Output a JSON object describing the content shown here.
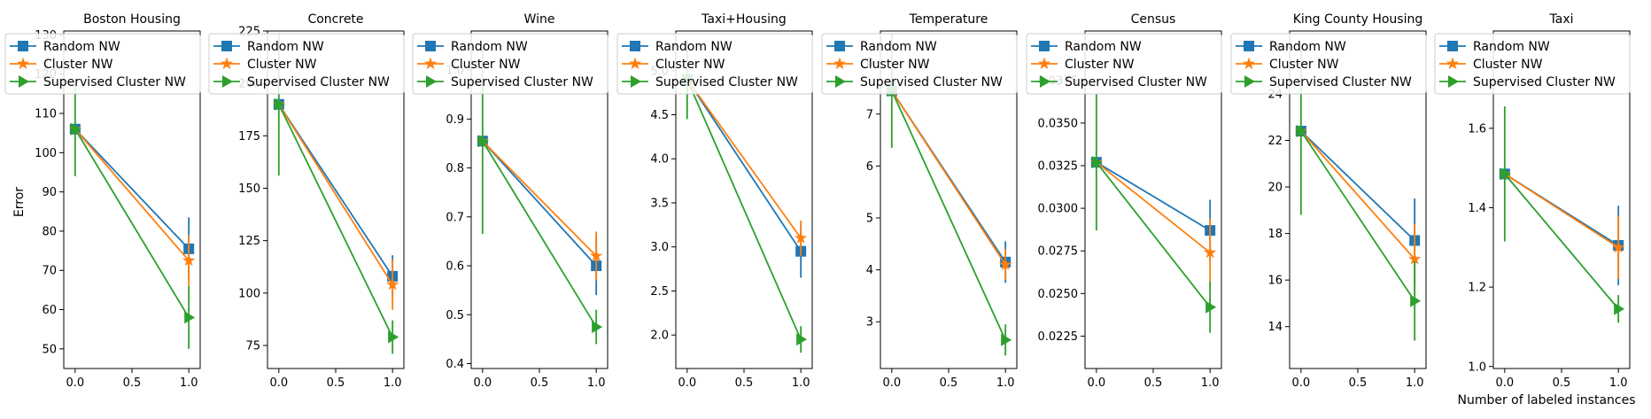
{
  "figure": {
    "ylabel": "Error",
    "xlabel": "Number of labeled instances",
    "legend_placement": "upper-left",
    "colors": {
      "Random NW": "#1f77b4",
      "Cluster NW": "#ff7f0e",
      "Supervised Cluster NW": "#2ca02c"
    },
    "markers": {
      "Random NW": "square",
      "Cluster NW": "star",
      "Supervised Cluster NW": "triangle-right"
    }
  },
  "chart_data": [
    {
      "type": "line",
      "title": "Boston Housing",
      "x": [
        0.0,
        1.0
      ],
      "xlim": [
        -0.1,
        1.1
      ],
      "xticks": [
        "0.0",
        "0.5",
        "1.0"
      ],
      "ylim": [
        45,
        131
      ],
      "yticks": [
        "50",
        "60",
        "70",
        "80",
        "90",
        "100",
        "110",
        "120",
        "130"
      ],
      "series": [
        {
          "name": "Random NW",
          "values": [
            106,
            75.5
          ],
          "err": [
            0,
            8
          ]
        },
        {
          "name": "Cluster NW",
          "values": [
            106,
            72.5
          ],
          "err": [
            0,
            6.5
          ]
        },
        {
          "name": "Supervised Cluster NW",
          "values": [
            106,
            58
          ],
          "err": [
            12,
            8
          ]
        }
      ]
    },
    {
      "type": "line",
      "title": "Concrete",
      "x": [
        0.0,
        1.0
      ],
      "xlim": [
        -0.1,
        1.1
      ],
      "xticks": [
        "0.0",
        "0.5",
        "1.0"
      ],
      "ylim": [
        64,
        225
      ],
      "yticks": [
        "75",
        "100",
        "125",
        "150",
        "175",
        "200",
        "225"
      ],
      "series": [
        {
          "name": "Random NW",
          "values": [
            190,
            108
          ],
          "err": [
            0,
            10
          ]
        },
        {
          "name": "Cluster NW",
          "values": [
            190,
            104
          ],
          "err": [
            0,
            12
          ]
        },
        {
          "name": "Supervised Cluster NW",
          "values": [
            190,
            79
          ],
          "err": [
            34,
            8
          ]
        }
      ]
    },
    {
      "type": "line",
      "title": "Wine",
      "x": [
        0.0,
        1.0
      ],
      "xlim": [
        -0.1,
        1.1
      ],
      "xticks": [
        "0.0",
        "0.5",
        "1.0"
      ],
      "ylim": [
        0.39,
        1.08
      ],
      "yticks": [
        "0.4",
        "0.5",
        "0.6",
        "0.7",
        "0.8",
        "0.9",
        "1.0"
      ],
      "series": [
        {
          "name": "Random NW",
          "values": [
            0.855,
            0.6
          ],
          "err": [
            0,
            0.06
          ]
        },
        {
          "name": "Cluster NW",
          "values": [
            0.855,
            0.62
          ],
          "err": [
            0,
            0.05
          ]
        },
        {
          "name": "Supervised Cluster NW",
          "values": [
            0.855,
            0.475
          ],
          "err": [
            0.19,
            0.035
          ]
        }
      ]
    },
    {
      "type": "line",
      "title": "Taxi+Housing",
      "x": [
        0.0,
        1.0
      ],
      "xlim": [
        -0.1,
        1.1
      ],
      "xticks": [
        "0.0",
        "0.5",
        "1.0"
      ],
      "ylim": [
        1.62,
        5.45
      ],
      "yticks": [
        "2.0",
        "2.5",
        "3.0",
        "3.5",
        "4.0",
        "4.5",
        "5.0"
      ],
      "series": [
        {
          "name": "Random NW",
          "values": [
            4.9,
            2.95
          ],
          "err": [
            0,
            0.3
          ]
        },
        {
          "name": "Cluster NW",
          "values": [
            4.9,
            3.1
          ],
          "err": [
            0,
            0.2
          ]
        },
        {
          "name": "Supervised Cluster NW",
          "values": [
            4.9,
            1.95
          ],
          "err": [
            0.45,
            0.15
          ]
        }
      ]
    },
    {
      "type": "line",
      "title": "Temperature",
      "x": [
        0.0,
        1.0
      ],
      "xlim": [
        -0.1,
        1.1
      ],
      "xticks": [
        "0.0",
        "0.5",
        "1.0"
      ],
      "ylim": [
        2.1,
        8.6
      ],
      "yticks": [
        "3",
        "4",
        "5",
        "6",
        "7",
        "8"
      ],
      "series": [
        {
          "name": "Random NW",
          "values": [
            7.45,
            4.15
          ],
          "err": [
            0,
            0.4
          ]
        },
        {
          "name": "Cluster NW",
          "values": [
            7.45,
            4.1
          ],
          "err": [
            0,
            0.3
          ]
        },
        {
          "name": "Supervised Cluster NW",
          "values": [
            7.45,
            2.65
          ],
          "err": [
            1.1,
            0.3
          ]
        }
      ]
    },
    {
      "type": "line",
      "title": "Census",
      "x": [
        0.0,
        1.0
      ],
      "xlim": [
        -0.1,
        1.1
      ],
      "xticks": [
        "0.0",
        "0.5",
        "1.0"
      ],
      "ylim": [
        0.0206,
        0.0404
      ],
      "yticks": [
        "0.0225",
        "0.0250",
        "0.0275",
        "0.0300",
        "0.0325",
        "0.0350",
        "0.0375"
      ],
      "series": [
        {
          "name": "Random NW",
          "values": [
            0.0327,
            0.0287
          ],
          "err": [
            0,
            0.0018
          ]
        },
        {
          "name": "Cluster NW",
          "values": [
            0.0327,
            0.0274
          ],
          "err": [
            0,
            0.002
          ]
        },
        {
          "name": "Supervised Cluster NW",
          "values": [
            0.0327,
            0.0242
          ],
          "err": [
            0.004,
            0.0015
          ]
        }
      ]
    },
    {
      "type": "line",
      "title": "King County Housing",
      "x": [
        0.0,
        1.0
      ],
      "xlim": [
        -0.1,
        1.1
      ],
      "xticks": [
        "0.0",
        "0.5",
        "1.0"
      ],
      "ylim": [
        12.2,
        26.7
      ],
      "yticks": [
        "14",
        "16",
        "18",
        "20",
        "22",
        "24",
        "26"
      ],
      "series": [
        {
          "name": "Random NW",
          "values": [
            22.4,
            17.7
          ],
          "err": [
            0,
            1.8
          ]
        },
        {
          "name": "Cluster NW",
          "values": [
            22.4,
            16.9
          ],
          "err": [
            0,
            1.5
          ]
        },
        {
          "name": "Supervised Cluster NW",
          "values": [
            22.4,
            15.1
          ],
          "err": [
            3.6,
            1.7
          ]
        }
      ]
    },
    {
      "type": "line",
      "title": "Taxi",
      "x": [
        0.0,
        1.0
      ],
      "xlim": [
        -0.1,
        1.1
      ],
      "xticks": [
        "0.0",
        "0.5",
        "1.0"
      ],
      "ylim": [
        0.995,
        1.845
      ],
      "yticks": [
        "1.0",
        "1.2",
        "1.4",
        "1.6"
      ],
      "series": [
        {
          "name": "Random NW",
          "values": [
            1.485,
            1.305
          ],
          "err": [
            0,
            0.1
          ]
        },
        {
          "name": "Cluster NW",
          "values": [
            1.485,
            1.3
          ],
          "err": [
            0,
            0.08
          ]
        },
        {
          "name": "Supervised Cluster NW",
          "values": [
            1.485,
            1.145
          ],
          "err": [
            0.17,
            0.035
          ]
        }
      ]
    }
  ]
}
